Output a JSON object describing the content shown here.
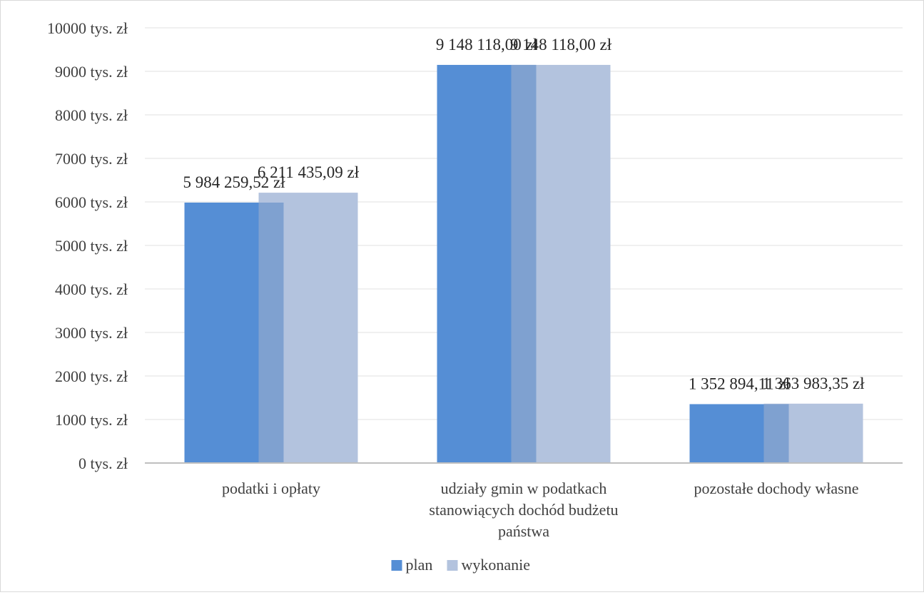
{
  "chart_data": {
    "type": "bar",
    "categories": [
      [
        "podatki i opłaty"
      ],
      [
        "udziały gmin w podatkach",
        "stanowiących dochód budżetu",
        "państwa"
      ],
      [
        "pozostałe dochody własne"
      ]
    ],
    "series": [
      {
        "name": "plan",
        "color": "#558ed5",
        "values": [
          5984259.52,
          9148118.0,
          1352894.11
        ],
        "data_labels": [
          "5 984 259,52 zł",
          "9 148 118,00 zł",
          "1 352 894,11 zł"
        ]
      },
      {
        "name": "wykonanie",
        "color": "#b3c3de",
        "values": [
          6211435.09,
          9148118.0,
          1363983.35
        ],
        "data_labels": [
          "6 211 435,09 zł",
          "9 148 118,00 zł",
          "1 363 983,35 zł"
        ]
      }
    ],
    "overlap_color": "#7fa1d0",
    "yaxis": {
      "ticks": [
        0,
        1000,
        2000,
        3000,
        4000,
        5000,
        6000,
        7000,
        8000,
        9000,
        10000
      ],
      "tick_suffix": " tys. zł",
      "ylim": [
        0,
        10000
      ],
      "unit_divisor": 1000
    },
    "gridlines": true,
    "gridline_color": "#ececec",
    "legend_position": "bottom",
    "title": "",
    "xlabel": "",
    "ylabel": ""
  }
}
